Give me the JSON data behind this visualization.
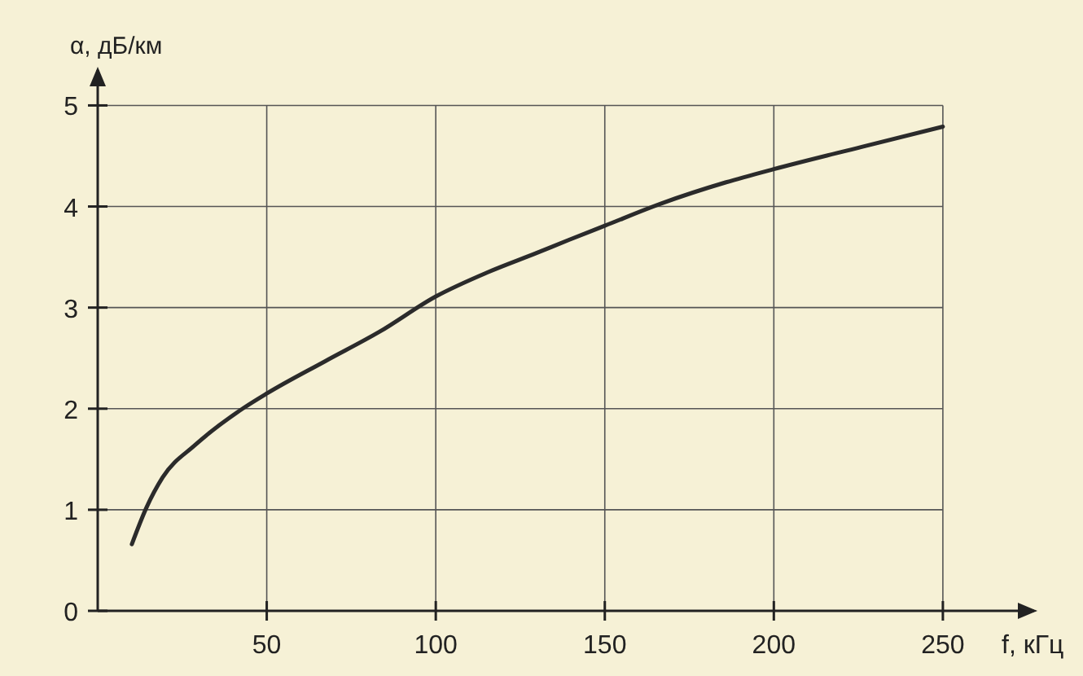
{
  "chart_data": {
    "type": "line",
    "xlabel": "f, кГц",
    "ylabel": "α, дБ/км",
    "x": [
      10.1,
      14.4,
      19.2,
      28.8,
      43.3,
      50,
      67.3,
      83.3,
      100,
      115.4,
      129.8,
      139.4,
      150,
      166.7,
      185.9,
      200,
      226,
      250
    ],
    "values": [
      0.66,
      1.02,
      1.32,
      1.64,
      2.01,
      2.15,
      2.47,
      2.76,
      3.11,
      3.35,
      3.54,
      3.67,
      3.81,
      4.03,
      4.24,
      4.37,
      4.59,
      4.79
    ],
    "color": "#2b2b2b",
    "xlim": [
      0,
      277
    ],
    "ylim": [
      0,
      5.35
    ],
    "xticks": [
      50,
      100,
      150,
      200,
      250
    ],
    "yticks": [
      0,
      1,
      2,
      3,
      4,
      5
    ],
    "grid": true,
    "marker": "none",
    "line_style": "solid"
  }
}
